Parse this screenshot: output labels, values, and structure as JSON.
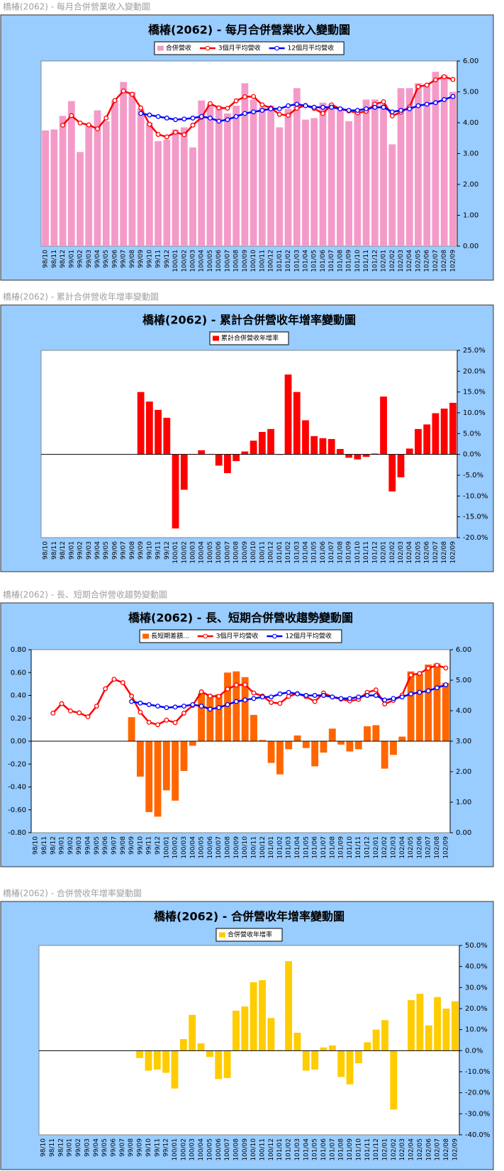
{
  "chart_data": [
    {
      "type": "combo",
      "caption": "橋椿(2062)  - 每月合併營業收入變動圖",
      "title": "橋椿(2062)  - 每月合併營業收入變動圖",
      "y_axis_side": "right",
      "categories": [
        "98/10",
        "98/11",
        "98/12",
        "99/01",
        "99/02",
        "99/03",
        "99/04",
        "99/05",
        "99/06",
        "99/07",
        "99/08",
        "99/09",
        "99/10",
        "99/11",
        "99/12",
        "100/01",
        "100/02",
        "100/03",
        "100/04",
        "100/05",
        "100/06",
        "100/07",
        "100/08",
        "100/09",
        "100/10",
        "100/11",
        "100/12",
        "101/01",
        "101/02",
        "101/03",
        "101/04",
        "101/05",
        "101/06",
        "101/07",
        "101/08",
        "101/09",
        "101/10",
        "101/11",
        "101/12",
        "102/01",
        "102/02",
        "102/03",
        "102/04",
        "102/05",
        "102/06",
        "102/07",
        "102/08",
        "102/09"
      ],
      "series": [
        {
          "name": "合併營收",
          "type": "bar",
          "color": "#f49ac8",
          "values": [
            3.75,
            3.78,
            4.22,
            4.7,
            3.05,
            3.95,
            4.4,
            4.05,
            4.72,
            5.32,
            5.0,
            4.45,
            4.0,
            3.4,
            3.45,
            3.78,
            3.85,
            3.2,
            4.72,
            4.6,
            4.55,
            4.3,
            4.55,
            5.28,
            4.75,
            4.5,
            4.55,
            3.85,
            4.45,
            5.12,
            4.1,
            4.15,
            4.65,
            4.6,
            4.5,
            4.05,
            4.3,
            4.75,
            4.75,
            4.6,
            3.3,
            5.12,
            5.12,
            5.28,
            5.25,
            5.65,
            5.55,
            5.0
          ]
        },
        {
          "name": "3個月平均營收",
          "type": "line",
          "color": "#ff0000",
          "values": [
            null,
            null,
            3.92,
            4.23,
            3.99,
            3.93,
            3.8,
            4.15,
            4.72,
            5.03,
            4.92,
            4.48,
            3.95,
            3.62,
            3.54,
            3.69,
            3.61,
            3.92,
            4.17,
            4.62,
            4.48,
            4.47,
            4.71,
            4.84,
            4.85,
            4.58,
            4.48,
            4.27,
            4.24,
            4.47,
            4.56,
            4.46,
            4.3,
            4.58,
            4.45,
            4.38,
            4.32,
            4.37,
            4.6,
            4.68,
            4.22,
            4.34,
            4.51,
            5.17,
            5.22,
            5.39,
            5.49,
            5.4
          ]
        },
        {
          "name": "12個月平均營收",
          "type": "line",
          "color": "#0000ff",
          "values": [
            null,
            null,
            null,
            null,
            null,
            null,
            null,
            null,
            null,
            null,
            null,
            4.3,
            4.25,
            4.2,
            4.15,
            4.1,
            4.12,
            4.15,
            4.2,
            4.15,
            4.05,
            4.1,
            4.2,
            4.3,
            4.35,
            4.4,
            4.45,
            4.45,
            4.55,
            4.6,
            4.55,
            4.5,
            4.5,
            4.5,
            4.45,
            4.4,
            4.4,
            4.45,
            4.5,
            4.5,
            4.35,
            4.4,
            4.45,
            4.55,
            4.6,
            4.65,
            4.75,
            4.85
          ]
        }
      ],
      "ylim": [
        0,
        6
      ],
      "yticks": [
        {
          "value": 0,
          "label": "0.00"
        },
        {
          "value": 1,
          "label": "1.00"
        },
        {
          "value": 2,
          "label": "2.00"
        },
        {
          "value": 3,
          "label": "3.00"
        },
        {
          "value": 4,
          "label": "4.00"
        },
        {
          "value": 5,
          "label": "5.00"
        },
        {
          "value": 6,
          "label": "6.00"
        }
      ]
    },
    {
      "type": "bar",
      "caption": "橋椿(2062)  - 累計合併營收年增率變動圖",
      "title": "橋椿(2062)  - 累計合併營收年增率變動圖",
      "y_axis_side": "right",
      "categories": [
        "98/10",
        "98/11",
        "98/12",
        "99/01",
        "99/02",
        "99/03",
        "99/04",
        "99/05",
        "99/06",
        "99/07",
        "99/08",
        "99/09",
        "99/10",
        "99/11",
        "99/12",
        "100/01",
        "100/02",
        "100/03",
        "100/04",
        "100/05",
        "100/06",
        "100/07",
        "100/08",
        "100/09",
        "100/10",
        "100/11",
        "100/12",
        "101/01",
        "101/02",
        "101/03",
        "101/04",
        "101/05",
        "101/06",
        "101/07",
        "101/08",
        "101/09",
        "101/10",
        "101/11",
        "101/12",
        "102/01",
        "102/02",
        "102/03",
        "102/04",
        "102/05",
        "102/06",
        "102/07",
        "102/08",
        "102/09"
      ],
      "series": [
        {
          "name": "累計合併營收年增率",
          "type": "bar",
          "color": "#ff0000",
          "values": [
            null,
            null,
            null,
            null,
            null,
            null,
            null,
            null,
            null,
            null,
            null,
            15.0,
            12.7,
            10.7,
            8.8,
            -17.8,
            -8.5,
            0.1,
            1.0,
            0.1,
            -2.7,
            -4.5,
            -1.6,
            0.7,
            3.3,
            5.4,
            6.1,
            -0.1,
            19.2,
            15.0,
            8.2,
            4.4,
            3.9,
            3.7,
            1.3,
            -0.8,
            -1.2,
            -0.6,
            0.2,
            13.9,
            -8.9,
            -5.5,
            1.4,
            6.1,
            7.2,
            9.9,
            11.0,
            12.4
          ]
        }
      ],
      "ylim": [
        -20,
        25
      ],
      "yticks": [
        {
          "value": -20,
          "label": "-20.0%"
        },
        {
          "value": -15,
          "label": "-15.0%"
        },
        {
          "value": -10,
          "label": "-10.0%"
        },
        {
          "value": -5,
          "label": "-5.0%"
        },
        {
          "value": 0,
          "label": "0.0%"
        },
        {
          "value": 5,
          "label": "5.0%"
        },
        {
          "value": 10,
          "label": "10.0%"
        },
        {
          "value": 15,
          "label": "15.0%"
        },
        {
          "value": 20,
          "label": "20.0%"
        },
        {
          "value": 25,
          "label": "25.0%"
        }
      ]
    },
    {
      "type": "combo",
      "caption": "橋椿(2062)  - 長、短期合併營收趨勢變動圖",
      "title": "橋椿(2062)  - 長、短期合併營收趨勢變動圖",
      "y_axis_side": "left",
      "negative_tick_color": "#ff0066",
      "categories": [
        "98/10",
        "98/11",
        "98/12",
        "99/01",
        "99/02",
        "99/03",
        "99/04",
        "99/05",
        "99/06",
        "99/07",
        "99/08",
        "99/09",
        "99/10",
        "99/11",
        "99/12",
        "100/01",
        "100/02",
        "100/03",
        "100/04",
        "100/05",
        "100/06",
        "100/07",
        "100/08",
        "100/09",
        "100/10",
        "100/11",
        "100/12",
        "101/01",
        "101/02",
        "101/03",
        "101/04",
        "101/05",
        "101/06",
        "101/07",
        "101/08",
        "101/09",
        "101/10",
        "101/11",
        "101/12",
        "102/01",
        "102/02",
        "102/03",
        "102/04",
        "102/05",
        "102/06",
        "102/07",
        "102/08",
        "102/09"
      ],
      "series": [
        {
          "name": "長短期差額...",
          "type": "bar",
          "color": "#ff6600",
          "values": [
            null,
            null,
            null,
            null,
            null,
            null,
            null,
            null,
            null,
            null,
            null,
            0.21,
            -0.31,
            -0.62,
            -0.66,
            -0.43,
            -0.52,
            -0.26,
            -0.04,
            0.42,
            0.4,
            0.41,
            0.6,
            0.61,
            0.56,
            0.23,
            0.01,
            -0.19,
            -0.29,
            -0.07,
            0.05,
            -0.06,
            -0.22,
            -0.1,
            0.11,
            -0.03,
            -0.09,
            -0.07,
            0.13,
            0.14,
            -0.24,
            -0.12,
            0.04,
            0.61,
            0.59,
            0.67,
            0.68,
            0.51
          ]
        },
        {
          "name": "3個月平均營收",
          "type": "line",
          "axis": "y2",
          "color": "#ff0000",
          "values": [
            null,
            null,
            3.92,
            4.23,
            3.99,
            3.93,
            3.8,
            4.15,
            4.72,
            5.03,
            4.92,
            4.48,
            3.95,
            3.62,
            3.54,
            3.69,
            3.61,
            3.92,
            4.17,
            4.62,
            4.48,
            4.47,
            4.71,
            4.84,
            4.85,
            4.58,
            4.48,
            4.27,
            4.24,
            4.47,
            4.56,
            4.46,
            4.3,
            4.58,
            4.45,
            4.38,
            4.32,
            4.37,
            4.6,
            4.68,
            4.22,
            4.34,
            4.51,
            5.17,
            5.22,
            5.39,
            5.49,
            5.4
          ]
        },
        {
          "name": "12個月平均營收",
          "type": "line",
          "axis": "y2",
          "color": "#0000ff",
          "values": [
            null,
            null,
            null,
            null,
            null,
            null,
            null,
            null,
            null,
            null,
            null,
            4.3,
            4.25,
            4.2,
            4.15,
            4.1,
            4.12,
            4.15,
            4.2,
            4.15,
            4.05,
            4.1,
            4.2,
            4.3,
            4.35,
            4.4,
            4.45,
            4.45,
            4.55,
            4.6,
            4.55,
            4.5,
            4.5,
            4.5,
            4.45,
            4.4,
            4.4,
            4.45,
            4.5,
            4.5,
            4.35,
            4.4,
            4.45,
            4.55,
            4.6,
            4.65,
            4.75,
            4.85
          ]
        }
      ],
      "ylim": [
        -0.8,
        0.8
      ],
      "yticks": [
        {
          "value": -0.8,
          "label": "-0.80"
        },
        {
          "value": -0.6,
          "label": "-0.60"
        },
        {
          "value": -0.4,
          "label": "-0.40"
        },
        {
          "value": -0.2,
          "label": "-0.20"
        },
        {
          "value": 0,
          "label": "0.00"
        },
        {
          "value": 0.2,
          "label": "0.20"
        },
        {
          "value": 0.4,
          "label": "0.40"
        },
        {
          "value": 0.6,
          "label": "0.60"
        },
        {
          "value": 0.8,
          "label": "0.80"
        }
      ],
      "y2lim": [
        0,
        6
      ],
      "y2ticks": [
        {
          "value": 0,
          "label": "0.00"
        },
        {
          "value": 1,
          "label": "1.00"
        },
        {
          "value": 2,
          "label": "2.00"
        },
        {
          "value": 3,
          "label": "3.00"
        },
        {
          "value": 4,
          "label": "4.00"
        },
        {
          "value": 5,
          "label": "5.00"
        },
        {
          "value": 6,
          "label": "6.00"
        }
      ]
    },
    {
      "type": "bar",
      "caption": "橋椿(2062)  - 合併營收年增率變動圖",
      "title": "橋椿(2062)  - 合併營收年增率變動圖",
      "y_axis_side": "right",
      "categories": [
        "98/10",
        "98/11",
        "98/12",
        "99/01",
        "99/02",
        "99/03",
        "99/04",
        "99/05",
        "99/06",
        "99/07",
        "99/08",
        "99/09",
        "99/10",
        "99/11",
        "99/12",
        "100/01",
        "100/02",
        "100/03",
        "100/04",
        "100/05",
        "100/06",
        "100/07",
        "100/08",
        "100/09",
        "100/10",
        "100/11",
        "100/12",
        "101/01",
        "101/02",
        "101/03",
        "101/04",
        "101/05",
        "101/06",
        "101/07",
        "101/08",
        "101/09",
        "101/10",
        "101/11",
        "101/12",
        "102/01",
        "102/02",
        "102/03",
        "102/04",
        "102/05",
        "102/06",
        "102/07",
        "102/08",
        "102/09"
      ],
      "series": [
        {
          "name": "合併營收年增率",
          "type": "bar",
          "color": "#ffcc00",
          "values": [
            null,
            null,
            null,
            null,
            null,
            null,
            null,
            null,
            null,
            null,
            null,
            -3.5,
            -9.5,
            -9.0,
            -10.5,
            -18.0,
            5.5,
            17.0,
            3.5,
            -3.0,
            -13.5,
            -13.0,
            19.0,
            21.0,
            32.5,
            33.5,
            15.5,
            0.3,
            42.5,
            8.5,
            -9.5,
            -9.0,
            1.5,
            2.5,
            -12.5,
            -16.0,
            -6.0,
            4.0,
            10.0,
            14.5,
            -28.0,
            0.2,
            24.0,
            27.0,
            12.0,
            25.5,
            20.0,
            23.5
          ]
        }
      ],
      "ylim": [
        -40,
        50
      ],
      "yticks": [
        {
          "value": -40,
          "label": "-40.0%"
        },
        {
          "value": -30,
          "label": "-30.0%"
        },
        {
          "value": -20,
          "label": "-20.0%"
        },
        {
          "value": -10,
          "label": "-10.0%"
        },
        {
          "value": 0,
          "label": "0.0%"
        },
        {
          "value": 10,
          "label": "10.0%"
        },
        {
          "value": 20,
          "label": "20.0%"
        },
        {
          "value": 30,
          "label": "30.0%"
        },
        {
          "value": 40,
          "label": "40.0%"
        },
        {
          "value": 50,
          "label": "50.0%"
        }
      ]
    }
  ]
}
